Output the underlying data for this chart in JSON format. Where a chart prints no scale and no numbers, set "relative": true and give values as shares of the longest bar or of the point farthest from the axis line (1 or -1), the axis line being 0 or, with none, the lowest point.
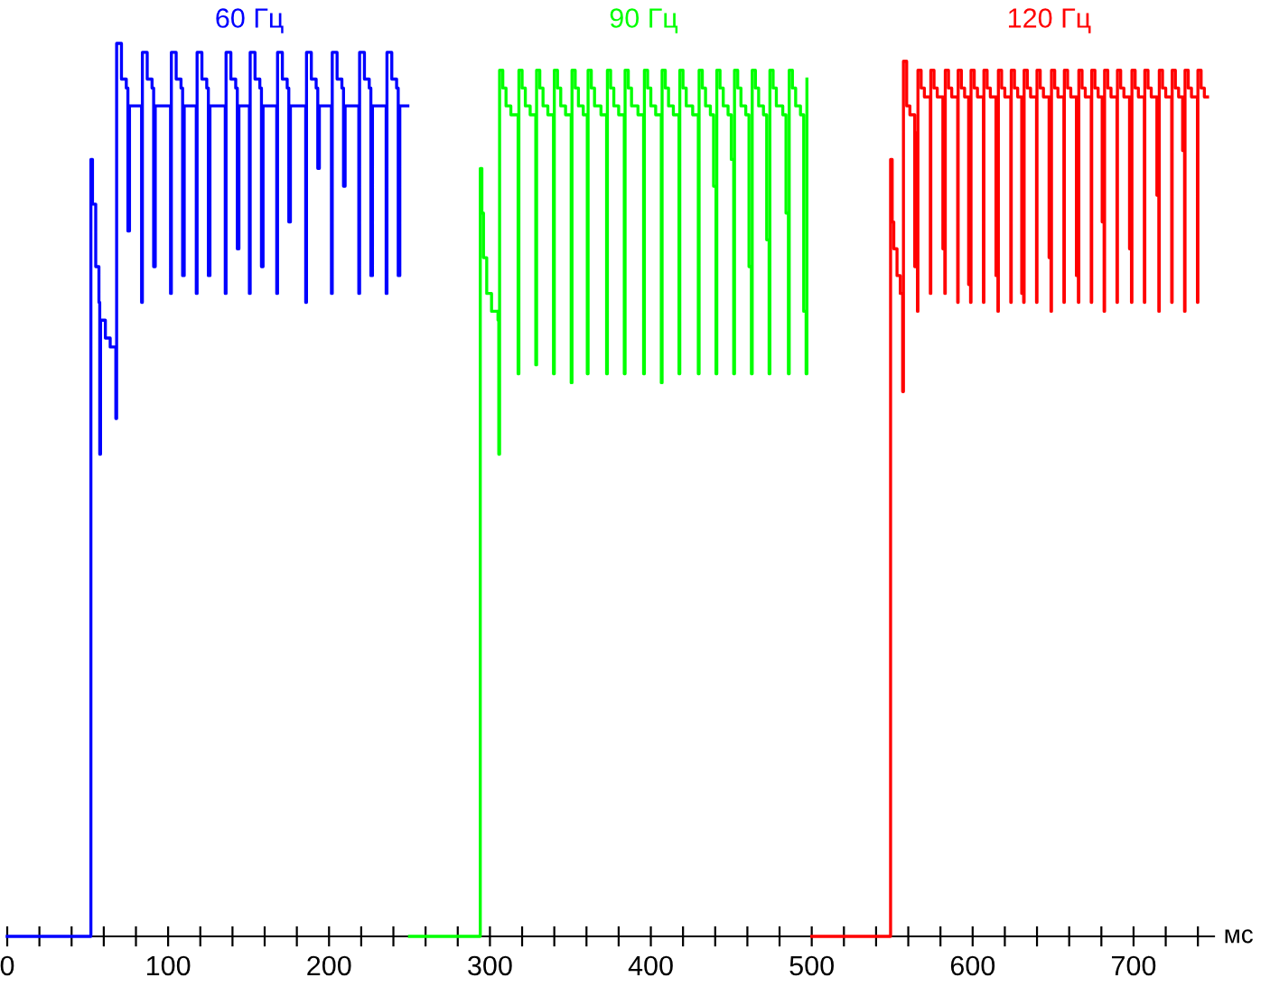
{
  "chart_data": {
    "type": "step",
    "relative": true,
    "xlabel": "мс",
    "xlim": [
      0,
      750
    ],
    "xticks": [
      0,
      {
        "value": 20,
        "label": null
      },
      {
        "value": 40,
        "label": null
      },
      {
        "value": 60,
        "label": null
      },
      {
        "value": 80,
        "label": null
      },
      100,
      {
        "value": 120,
        "label": null
      },
      {
        "value": 140,
        "label": null
      },
      {
        "value": 160,
        "label": null
      },
      {
        "value": 180,
        "label": null
      },
      200,
      {
        "value": 220,
        "label": null
      },
      {
        "value": 240,
        "label": null
      },
      {
        "value": 260,
        "label": null
      },
      {
        "value": 280,
        "label": null
      },
      300,
      {
        "value": 320,
        "label": null
      },
      {
        "value": 340,
        "label": null
      },
      {
        "value": 360,
        "label": null
      },
      {
        "value": 380,
        "label": null
      },
      400,
      {
        "value": 420,
        "label": null
      },
      {
        "value": 440,
        "label": null
      },
      {
        "value": 460,
        "label": null
      },
      {
        "value": 480,
        "label": null
      },
      500,
      {
        "value": 520,
        "label": null
      },
      {
        "value": 540,
        "label": null
      },
      {
        "value": 560,
        "label": null
      },
      {
        "value": 580,
        "label": null
      },
      600,
      {
        "value": 620,
        "label": null
      },
      {
        "value": 640,
        "label": null
      },
      {
        "value": 660,
        "label": null
      },
      {
        "value": 680,
        "label": null
      },
      700,
      {
        "value": 720,
        "label": null
      },
      {
        "value": 740,
        "label": null
      }
    ],
    "grid": false,
    "legend": false,
    "marker": "none",
    "line_style": "solid",
    "series": [
      {
        "name": "60 Гц",
        "color": "#0000ff",
        "x": [
          0,
          52,
          52,
          53,
          55,
          57,
          57.5,
          58,
          61,
          64,
          67.5,
          68,
          71,
          74,
          75,
          76,
          80,
          83.5,
          84,
          87,
          90,
          91,
          92,
          96,
          101.5,
          102,
          105,
          108,
          109,
          110,
          114,
          117.5,
          118,
          121,
          124,
          125,
          126,
          130,
          135.5,
          136,
          139,
          142,
          143,
          144,
          148,
          150.5,
          151,
          154,
          157,
          158,
          159,
          163,
          167.5,
          168,
          171,
          174,
          175,
          176,
          180,
          185.5,
          186,
          189,
          192,
          193,
          194,
          198,
          201.5,
          202,
          205,
          208,
          209,
          210,
          214,
          218.5,
          219,
          222,
          225,
          226,
          227,
          231,
          235.5,
          236,
          239,
          242,
          243,
          244,
          249
        ],
        "values": [
          0,
          0,
          0.87,
          0.82,
          0.75,
          0.71,
          0.54,
          0.69,
          0.67,
          0.66,
          0.58,
          1.0,
          0.96,
          0.95,
          0.79,
          0.93,
          0.93,
          0.71,
          0.99,
          0.96,
          0.95,
          0.75,
          0.93,
          0.93,
          0.72,
          0.99,
          0.96,
          0.95,
          0.74,
          0.93,
          0.93,
          0.72,
          0.99,
          0.96,
          0.95,
          0.74,
          0.93,
          0.93,
          0.72,
          0.99,
          0.96,
          0.95,
          0.77,
          0.93,
          0.93,
          0.72,
          0.99,
          0.96,
          0.95,
          0.75,
          0.93,
          0.93,
          0.72,
          0.99,
          0.96,
          0.95,
          0.8,
          0.93,
          0.93,
          0.71,
          0.99,
          0.96,
          0.95,
          0.86,
          0.93,
          0.93,
          0.72,
          0.99,
          0.96,
          0.95,
          0.84,
          0.93,
          0.93,
          0.72,
          0.99,
          0.96,
          0.95,
          0.74,
          0.93,
          0.93,
          0.72,
          0.99,
          0.96,
          0.95,
          0.74,
          0.93,
          0.93
        ]
      },
      {
        "name": "90 Гц",
        "color": "#00ff00",
        "x": [
          250,
          294,
          294,
          295,
          296,
          298,
          301,
          305,
          305.5,
          306,
          308,
          310,
          313,
          317.5,
          318,
          320,
          322,
          325,
          328.5,
          329,
          331,
          333,
          336,
          339.5,
          340,
          342,
          344,
          347,
          350.5,
          351,
          353,
          355,
          358,
          360.5,
          361,
          363,
          365,
          369,
          372.5,
          373,
          375,
          377,
          380,
          383.5,
          384,
          386,
          388,
          392,
          395.5,
          396,
          398,
          400,
          403,
          406.5,
          407,
          409,
          411,
          414,
          417.5,
          418,
          420,
          422,
          426,
          429.5,
          430,
          432,
          434,
          437,
          439,
          440.5,
          441,
          443,
          445,
          448,
          450,
          451.5,
          452,
          454,
          456,
          459,
          461,
          462.5,
          463,
          465,
          467,
          470,
          472,
          473.5,
          474,
          476,
          478,
          482,
          484,
          485.5,
          486,
          488,
          490,
          493,
          495,
          496.5,
          497
        ],
        "values": [
          0,
          0,
          0.86,
          0.81,
          0.76,
          0.72,
          0.7,
          0.69,
          0.54,
          0.97,
          0.95,
          0.93,
          0.92,
          0.63,
          0.97,
          0.95,
          0.93,
          0.92,
          0.64,
          0.97,
          0.95,
          0.93,
          0.92,
          0.63,
          0.97,
          0.95,
          0.93,
          0.92,
          0.62,
          0.97,
          0.95,
          0.93,
          0.92,
          0.63,
          0.97,
          0.95,
          0.93,
          0.92,
          0.63,
          0.97,
          0.95,
          0.93,
          0.92,
          0.63,
          0.97,
          0.95,
          0.93,
          0.92,
          0.63,
          0.97,
          0.95,
          0.93,
          0.92,
          0.62,
          0.97,
          0.95,
          0.93,
          0.92,
          0.63,
          0.97,
          0.95,
          0.93,
          0.92,
          0.63,
          0.97,
          0.95,
          0.93,
          0.92,
          0.84,
          0.63,
          0.97,
          0.95,
          0.93,
          0.92,
          0.87,
          0.63,
          0.97,
          0.95,
          0.93,
          0.92,
          0.75,
          0.63,
          0.97,
          0.95,
          0.93,
          0.92,
          0.78,
          0.63,
          0.97,
          0.95,
          0.93,
          0.92,
          0.81,
          0.63,
          0.97,
          0.95,
          0.93,
          0.92,
          0.7,
          0.63,
          0.96
        ]
      },
      {
        "name": "120 Гц",
        "color": "#ff0000",
        "x": [
          500,
          549,
          549,
          550,
          551,
          553,
          555,
          556.5,
          557,
          559,
          561,
          564,
          564.5,
          565.7,
          566,
          568,
          570,
          573.7,
          574,
          576,
          578,
          581.5,
          582,
          582.7,
          583,
          585,
          587,
          590.7,
          591,
          593,
          595,
          597.5,
          598,
          598.7,
          599,
          601,
          603,
          606.7,
          607,
          609,
          611,
          614.5,
          615,
          615.7,
          616,
          618,
          620,
          623.7,
          624,
          626,
          628,
          630.5,
          631,
          631.7,
          632,
          634,
          636,
          639.7,
          640,
          642,
          644,
          647.5,
          648,
          648.7,
          649,
          651,
          653,
          656.7,
          657,
          659,
          661,
          664.5,
          665,
          665.7,
          666,
          668,
          670,
          673.7,
          674,
          676,
          678,
          680.5,
          681,
          681.7,
          682,
          684,
          686,
          689.7,
          690,
          692,
          694,
          697.5,
          698,
          698.7,
          699,
          701,
          703,
          706.7,
          707,
          709,
          711,
          714.5,
          715,
          715.7,
          716,
          718,
          720,
          723.7,
          724,
          726,
          728,
          730.5,
          731,
          731.7,
          732,
          734,
          736,
          739.7,
          740,
          742,
          744,
          746
        ],
        "values": [
          0,
          0,
          0.87,
          0.8,
          0.77,
          0.74,
          0.72,
          0.61,
          0.98,
          0.93,
          0.92,
          0.75,
          0.9,
          0.7,
          0.97,
          0.95,
          0.94,
          0.72,
          0.97,
          0.95,
          0.94,
          0.77,
          0.94,
          0.72,
          0.97,
          0.95,
          0.94,
          0.71,
          0.97,
          0.95,
          0.94,
          0.73,
          0.94,
          0.71,
          0.97,
          0.95,
          0.94,
          0.71,
          0.97,
          0.95,
          0.94,
          0.74,
          0.94,
          0.7,
          0.97,
          0.95,
          0.94,
          0.71,
          0.97,
          0.95,
          0.94,
          0.72,
          0.94,
          0.71,
          0.97,
          0.95,
          0.94,
          0.71,
          0.97,
          0.95,
          0.94,
          0.76,
          0.94,
          0.7,
          0.97,
          0.95,
          0.94,
          0.71,
          0.97,
          0.95,
          0.94,
          0.74,
          0.94,
          0.71,
          0.97,
          0.95,
          0.94,
          0.71,
          0.97,
          0.95,
          0.94,
          0.8,
          0.94,
          0.7,
          0.97,
          0.95,
          0.94,
          0.71,
          0.97,
          0.95,
          0.94,
          0.77,
          0.94,
          0.71,
          0.97,
          0.95,
          0.94,
          0.71,
          0.97,
          0.95,
          0.94,
          0.83,
          0.94,
          0.7,
          0.97,
          0.95,
          0.94,
          0.71,
          0.97,
          0.95,
          0.94,
          0.88,
          0.94,
          0.7,
          0.97,
          0.95,
          0.94,
          0.71,
          0.97,
          0.95,
          0.94,
          0.94
        ]
      }
    ]
  }
}
